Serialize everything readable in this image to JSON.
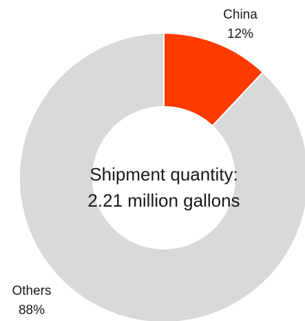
{
  "chart_data": {
    "type": "pie",
    "donut": true,
    "categories": [
      "China",
      "Others"
    ],
    "values": [
      12,
      88
    ],
    "value_labels": [
      "12%",
      "88%"
    ],
    "colors": [
      "#ff3a00",
      "#d9d9d9"
    ],
    "center_text": [
      "Shipment quantity:",
      "2.21 million gallons"
    ],
    "start_angle_deg": 0,
    "direction": "clockwise"
  }
}
